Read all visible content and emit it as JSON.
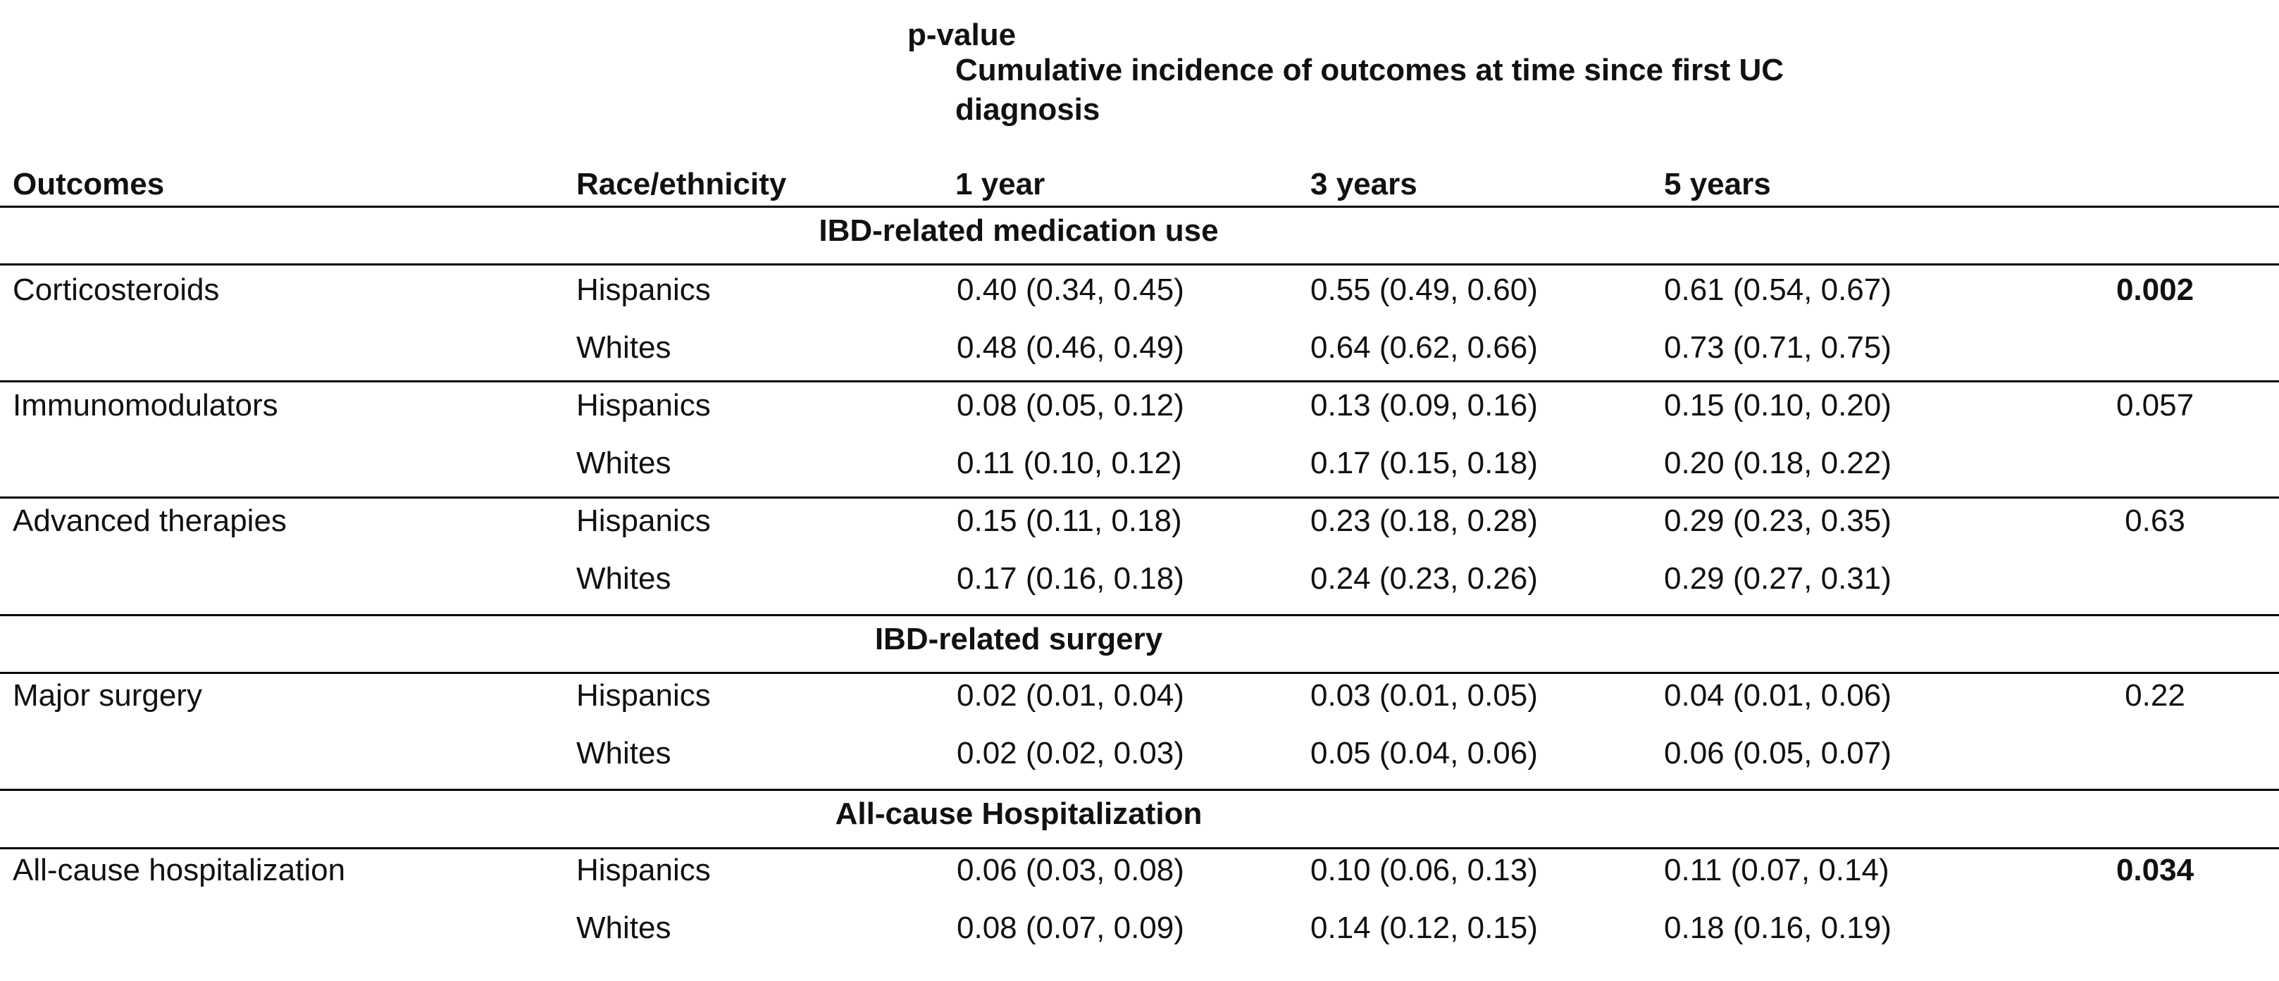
{
  "header": {
    "outcomes": "Outcomes",
    "race": "Race/ethnicity",
    "cumulative": "Cumulative incidence of outcomes at time since first UC diagnosis",
    "year1": "1 year",
    "year3": "3 years",
    "year5": "5 years",
    "pvalue": "p-value"
  },
  "sections": [
    {
      "title": "IBD-related medication use",
      "outcomes": [
        {
          "name": "Corticosteroids",
          "pvalue": "0.002",
          "pvalue_bold": true,
          "rows": [
            {
              "race": "Hispanics",
              "y1": "0.40 (0.34, 0.45)",
              "y3": "0.55 (0.49, 0.60)",
              "y5": "0.61 (0.54, 0.67)"
            },
            {
              "race": "Whites",
              "y1": "0.48 (0.46, 0.49)",
              "y3": "0.64 (0.62, 0.66)",
              "y5": "0.73 (0.71, 0.75)"
            }
          ]
        },
        {
          "name": "Immunomodulators",
          "pvalue": "0.057",
          "pvalue_bold": false,
          "rows": [
            {
              "race": "Hispanics",
              "y1": "0.08 (0.05, 0.12)",
              "y3": "0.13 (0.09, 0.16)",
              "y5": "0.15 (0.10, 0.20)"
            },
            {
              "race": "Whites",
              "y1": "0.11 (0.10, 0.12)",
              "y3": "0.17 (0.15, 0.18)",
              "y5": "0.20 (0.18, 0.22)"
            }
          ]
        },
        {
          "name": "Advanced therapies",
          "pvalue": "0.63",
          "pvalue_bold": false,
          "rows": [
            {
              "race": "Hispanics",
              "y1": "0.15 (0.11, 0.18)",
              "y3": "0.23 (0.18, 0.28)",
              "y5": "0.29 (0.23, 0.35)"
            },
            {
              "race": "Whites",
              "y1": "0.17 (0.16, 0.18)",
              "y3": "0.24 (0.23, 0.26)",
              "y5": "0.29 (0.27, 0.31)"
            }
          ]
        }
      ]
    },
    {
      "title": "IBD-related surgery",
      "outcomes": [
        {
          "name": "Major surgery",
          "pvalue": "0.22",
          "pvalue_bold": false,
          "rows": [
            {
              "race": "Hispanics",
              "y1": "0.02 (0.01, 0.04)",
              "y3": "0.03 (0.01, 0.05)",
              "y5": "0.04 (0.01, 0.06)"
            },
            {
              "race": "Whites",
              "y1": "0.02 (0.02, 0.03)",
              "y3": "0.05 (0.04, 0.06)",
              "y5": "0.06 (0.05, 0.07)"
            }
          ]
        }
      ]
    },
    {
      "title": "All-cause Hospitalization",
      "outcomes": [
        {
          "name": "All-cause hospitalization",
          "pvalue": "0.034",
          "pvalue_bold": true,
          "rows": [
            {
              "race": "Hispanics",
              "y1": "0.06 (0.03, 0.08)",
              "y3": "0.10 (0.06, 0.13)",
              "y5": "0.11 (0.07, 0.14)"
            },
            {
              "race": "Whites",
              "y1": "0.08 (0.07, 0.09)",
              "y3": "0.14 (0.12, 0.15)",
              "y5": "0.18 (0.16, 0.19)"
            }
          ]
        }
      ]
    }
  ]
}
